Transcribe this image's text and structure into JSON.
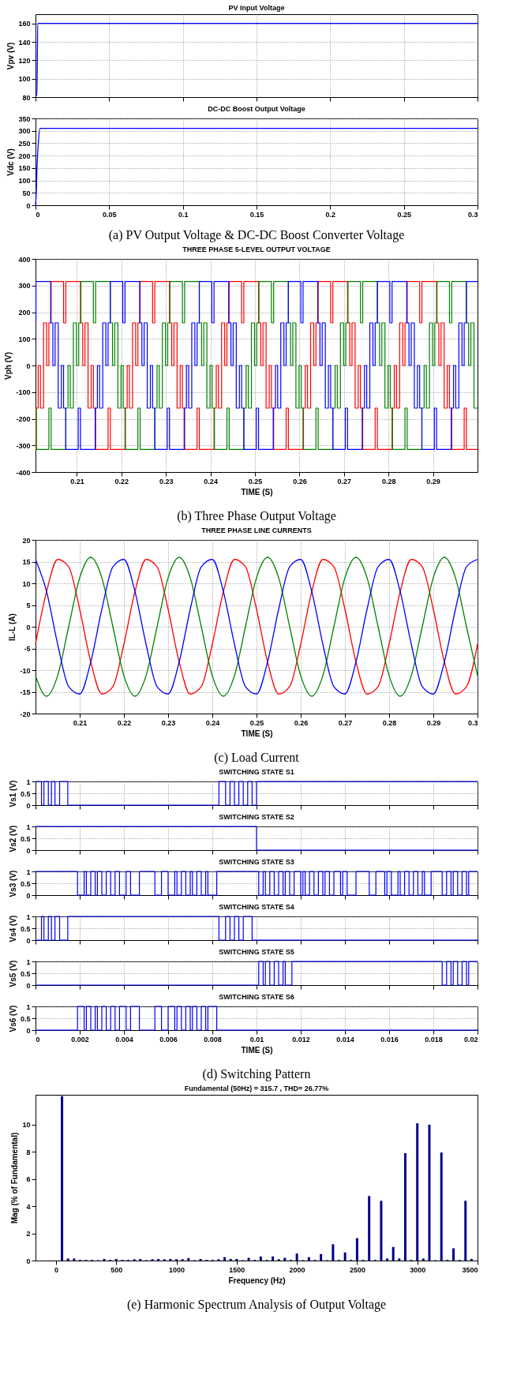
{
  "chart_data": [
    {
      "type": "line",
      "title": "PV Input Voltage",
      "ylabel": "Vpv (V)",
      "xlim": [
        0,
        0.3
      ],
      "xticks": [
        0,
        0.05,
        0.1,
        0.15,
        0.2,
        0.25,
        0.3
      ],
      "ylim": [
        80,
        170
      ],
      "yticks": [
        80,
        100,
        120,
        140,
        160
      ],
      "grid": true,
      "tick_labels": "y",
      "series": [
        {
          "color": "#0000ff",
          "x": [
            0,
            0.001,
            0.0015,
            0.3
          ],
          "values": [
            82,
            82,
            160,
            160
          ]
        }
      ]
    },
    {
      "type": "line",
      "title": "DC-DC Boost Output Voltage",
      "ylabel": "Vdc (V)",
      "xlim": [
        0,
        0.3
      ],
      "xticks": [
        0,
        0.05,
        0.1,
        0.15,
        0.2,
        0.25,
        0.3
      ],
      "ylim": [
        0,
        350
      ],
      "yticks": [
        0,
        50,
        100,
        150,
        200,
        250,
        300,
        350
      ],
      "grid": true,
      "annotations": [
        "(a)    PV Output Voltage & DC-DC Boost Converter Voltage"
      ],
      "series": [
        {
          "color": "#0000ff",
          "x": [
            0,
            0.0005,
            0.001,
            0.002,
            0.003,
            0.3
          ],
          "values": [
            0,
            50,
            150,
            260,
            310,
            310
          ]
        }
      ]
    },
    {
      "type": "step",
      "title": "THREE PHASE 5-LEVEL OUTPUT VOLTAGE",
      "xlabel": "TIME (S)",
      "ylabel": "Vph (V)",
      "xlim": [
        0.2007,
        0.3
      ],
      "xticks": [
        0.21,
        0.22,
        0.23,
        0.24,
        0.25,
        0.26,
        0.27,
        0.28,
        0.29
      ],
      "ylim": [
        -400,
        400
      ],
      "yticks": [
        -400,
        -300,
        -200,
        -100,
        0,
        100,
        200,
        300,
        400
      ],
      "grid": true,
      "annotations": [
        "(b)    Three Phase Output Voltage"
      ],
      "series": [
        {
          "color": "#ff0000",
          "x": [
            0.2007,
            0.2008,
            0.2013,
            0.2018,
            0.2025,
            0.2032,
            0.2037,
            0.2042,
            0.207,
            0.2075,
            0.2108,
            0.2113,
            0.2118,
            0.2125,
            0.2132,
            0.2137,
            0.2142,
            0.217,
            0.2175,
            0.2208,
            0.2213,
            0.2218,
            0.2225,
            0.2232,
            0.2237,
            0.2242,
            0.227,
            0.2275,
            0.2308,
            0.2313,
            0.2318,
            0.2325,
            0.2332,
            0.2337,
            0.2342,
            0.237,
            0.2375,
            0.2408,
            0.2413,
            0.2418,
            0.2425,
            0.2432,
            0.2437,
            0.2442,
            0.247,
            0.2475,
            0.2508,
            0.2513,
            0.2518,
            0.2525,
            0.2532,
            0.2537,
            0.2542,
            0.257,
            0.2575,
            0.2608,
            0.2613,
            0.2618,
            0.2625,
            0.2632,
            0.2637,
            0.2642,
            0.267,
            0.2675,
            0.2708,
            0.2713,
            0.2718,
            0.2725,
            0.2732,
            0.2737,
            0.2742,
            0.277,
            0.2775,
            0.2808,
            0.2813,
            0.2818,
            0.2825,
            0.2832,
            0.2837,
            0.2842,
            0.287,
            0.2875,
            0.2908,
            0.2913,
            0.2918,
            0.2925,
            0.2932,
            0.2937,
            0.2942,
            0.297,
            0.2975,
            0.3
          ],
          "values": [
            -315,
            -160,
            0,
            -160,
            160,
            0,
            160,
            315,
            160,
            315,
            160,
            0,
            160,
            -160,
            0,
            -160,
            -315,
            -160,
            -315,
            -160,
            0,
            -160,
            160,
            0,
            160,
            315,
            160,
            315,
            160,
            0,
            160,
            -160,
            0,
            -160,
            -315,
            -160,
            -315,
            -160,
            0,
            -160,
            160,
            0,
            160,
            315,
            160,
            315,
            160,
            0,
            160,
            -160,
            0,
            -160,
            -315,
            -160,
            -315,
            -160,
            0,
            -160,
            160,
            0,
            160,
            315,
            160,
            315,
            160,
            0,
            160,
            -160,
            0,
            -160,
            -315,
            -160,
            -315,
            -160,
            0,
            -160,
            160,
            0,
            160,
            315,
            160,
            315,
            160,
            0,
            160,
            -160,
            0,
            -160,
            -315,
            -160,
            -315,
            -315
          ]
        },
        {
          "color": "#008000",
          "x": [
            0.2007,
            0.2009,
            0.2037,
            0.2042,
            0.2075,
            0.208,
            0.2085,
            0.2092,
            0.2099,
            0.2104,
            0.2109,
            0.2137,
            0.2142,
            0.2175,
            0.218,
            0.2185,
            0.2192,
            0.2199,
            0.2204,
            0.2209,
            0.2237,
            0.2242,
            0.2275,
            0.228,
            0.2285,
            0.2292,
            0.2299,
            0.2304,
            0.2309,
            0.2337,
            0.2342,
            0.2375,
            0.238,
            0.2385,
            0.2392,
            0.2399,
            0.2404,
            0.2409,
            0.2437,
            0.2442,
            0.2475,
            0.248,
            0.2485,
            0.2492,
            0.2499,
            0.2504,
            0.2509,
            0.2537,
            0.2542,
            0.2575,
            0.258,
            0.2585,
            0.2592,
            0.2599,
            0.2604,
            0.2609,
            0.2637,
            0.2642,
            0.2675,
            0.268,
            0.2685,
            0.2692,
            0.2699,
            0.2704,
            0.2709,
            0.2737,
            0.2742,
            0.2775,
            0.278,
            0.2785,
            0.2792,
            0.2799,
            0.2804,
            0.2809,
            0.2837,
            0.2842,
            0.2875,
            0.288,
            0.2885,
            0.2892,
            0.2899,
            0.2904,
            0.2909,
            0.2937,
            0.2942,
            0.2975,
            0.298,
            0.2985,
            0.2992,
            0.3
          ],
          "values": [
            -160,
            -315,
            -160,
            -315,
            -160,
            0,
            -160,
            160,
            0,
            160,
            315,
            160,
            315,
            160,
            0,
            160,
            -160,
            0,
            -160,
            -315,
            -160,
            -315,
            -160,
            0,
            -160,
            160,
            0,
            160,
            315,
            160,
            315,
            160,
            0,
            160,
            -160,
            0,
            -160,
            -315,
            -160,
            -315,
            -160,
            0,
            -160,
            160,
            0,
            160,
            315,
            160,
            315,
            160,
            0,
            160,
            -160,
            0,
            -160,
            -315,
            -160,
            -315,
            -160,
            0,
            -160,
            160,
            0,
            160,
            315,
            160,
            315,
            160,
            0,
            160,
            -160,
            0,
            -160,
            -315,
            -160,
            -315,
            -160,
            0,
            -160,
            160,
            0,
            160,
            315,
            160,
            315,
            160,
            0,
            160,
            -160,
            -160
          ]
        },
        {
          "color": "#0000ff",
          "x": [
            0.2007,
            0.2008,
            0.2041,
            0.2046,
            0.2051,
            0.2058,
            0.2065,
            0.207,
            0.2075,
            0.2103,
            0.2108,
            0.2141,
            0.2146,
            0.2151,
            0.2158,
            0.2165,
            0.217,
            0.2175,
            0.2203,
            0.2208,
            0.2241,
            0.2246,
            0.2251,
            0.2258,
            0.2265,
            0.227,
            0.2275,
            0.2303,
            0.2308,
            0.2341,
            0.2346,
            0.2351,
            0.2358,
            0.2365,
            0.237,
            0.2375,
            0.2403,
            0.2408,
            0.2441,
            0.2446,
            0.2451,
            0.2458,
            0.2465,
            0.247,
            0.2475,
            0.2503,
            0.2508,
            0.2541,
            0.2546,
            0.2551,
            0.2558,
            0.2565,
            0.257,
            0.2575,
            0.2603,
            0.2608,
            0.2641,
            0.2646,
            0.2651,
            0.2658,
            0.2665,
            0.267,
            0.2675,
            0.2703,
            0.2708,
            0.2741,
            0.2746,
            0.2751,
            0.2758,
            0.2765,
            0.277,
            0.2775,
            0.2803,
            0.2808,
            0.2841,
            0.2846,
            0.2851,
            0.2858,
            0.2865,
            0.287,
            0.2875,
            0.2903,
            0.2908,
            0.2941,
            0.2946,
            0.2951,
            0.2958,
            0.2965,
            0.297,
            0.2975,
            0.3
          ],
          "values": [
            160,
            315,
            160,
            0,
            160,
            -160,
            0,
            -160,
            -315,
            -160,
            -315,
            -160,
            0,
            -160,
            160,
            0,
            160,
            315,
            160,
            315,
            160,
            0,
            160,
            -160,
            0,
            -160,
            -315,
            -160,
            -315,
            -160,
            0,
            -160,
            160,
            0,
            160,
            315,
            160,
            315,
            160,
            0,
            160,
            -160,
            0,
            -160,
            -315,
            -160,
            -315,
            -160,
            0,
            -160,
            160,
            0,
            160,
            315,
            160,
            315,
            160,
            0,
            160,
            -160,
            0,
            -160,
            -315,
            -160,
            -315,
            -160,
            0,
            -160,
            160,
            0,
            160,
            315,
            160,
            315,
            160,
            0,
            160,
            -160,
            0,
            -160,
            -315,
            -160,
            -315,
            -160,
            0,
            -160,
            160,
            0,
            160,
            315,
            315
          ]
        }
      ]
    },
    {
      "type": "line",
      "title": "THREE PHASE LINE CURRENTS",
      "xlabel": "TIME (S)",
      "ylabel": "IL-L (A)",
      "xlim": [
        0.2,
        0.3
      ],
      "xticks": [
        0.21,
        0.22,
        0.23,
        0.24,
        0.25,
        0.26,
        0.27,
        0.28,
        0.29,
        0.3
      ],
      "ylim": [
        -20,
        20
      ],
      "yticks": [
        -20,
        -15,
        -10,
        -5,
        0,
        5,
        10,
        15,
        20
      ],
      "grid": true,
      "annotations": [
        "(c)    Load Current"
      ],
      "x": [
        0.2,
        0.2025,
        0.205,
        0.2075,
        0.21,
        0.2125,
        0.215,
        0.2175,
        0.22,
        0.2225,
        0.225,
        0.2275,
        0.23,
        0.2325,
        0.235,
        0.2375,
        0.24,
        0.2425,
        0.245,
        0.2475,
        0.25,
        0.2525,
        0.255,
        0.2575,
        0.26,
        0.2625,
        0.265,
        0.2675,
        0.27,
        0.2725,
        0.275,
        0.2775,
        0.28,
        0.2825,
        0.285,
        0.2875,
        0.29,
        0.2925,
        0.295,
        0.2975,
        0.3
      ],
      "series": [
        {
          "color": "#ff0000",
          "values": [
            -4.0,
            8.1,
            15.5,
            13.8,
            4.0,
            -8.1,
            -15.5,
            -13.8,
            -4.0,
            8.1,
            15.5,
            13.8,
            4.0,
            -8.1,
            -15.5,
            -13.8,
            -4.0,
            8.1,
            15.5,
            13.8,
            4.0,
            -8.1,
            -15.5,
            -13.8,
            -4.0,
            8.1,
            15.5,
            13.8,
            4.0,
            -8.1,
            -15.5,
            -13.8,
            -4.0,
            8.1,
            15.5,
            13.8,
            4.0,
            -8.1,
            -15.5,
            -13.8,
            -4.0
          ]
        },
        {
          "color": "#008000",
          "values": [
            -11.3,
            -16,
            -11.3,
            0,
            11.3,
            16,
            11.3,
            0,
            -11.3,
            -16,
            -11.3,
            0,
            11.3,
            16,
            11.3,
            0,
            -11.3,
            -16,
            -11.3,
            0,
            11.3,
            16,
            11.3,
            0,
            -11.3,
            -16,
            -11.3,
            0,
            11.3,
            16,
            11.3,
            0,
            -11.3,
            -16,
            -11.3,
            0,
            11.3,
            16,
            11.3,
            0,
            -11.3
          ]
        },
        {
          "color": "#0000ff",
          "values": [
            15.5,
            8.1,
            -4.0,
            -13.8,
            -15.5,
            -8.1,
            4.0,
            13.8,
            15.5,
            8.1,
            -4.0,
            -13.8,
            -15.5,
            -8.1,
            4.0,
            13.8,
            15.5,
            8.1,
            -4.0,
            -13.8,
            -15.5,
            -8.1,
            4.0,
            13.8,
            15.5,
            8.1,
            -4.0,
            -13.8,
            -15.5,
            -8.1,
            4.0,
            13.8,
            15.5,
            8.1,
            -4.0,
            -13.8,
            -15.5,
            -8.1,
            4.0,
            13.8,
            15.5
          ]
        }
      ]
    },
    {
      "type": "step",
      "title": "SWITCHING STATE S1",
      "ylabel": "Vs1 (V)",
      "xlim": [
        0,
        0.02
      ],
      "xticks": [
        0,
        0.002,
        0.004,
        0.006,
        0.008,
        0.01,
        0.012,
        0.014,
        0.016,
        0.018,
        0.02
      ],
      "ylim": [
        0,
        1
      ],
      "yticks": [
        0,
        0.5,
        1
      ],
      "grid": true,
      "tick_labels": "y",
      "series": [
        {
          "color": "#0000ff",
          "x": [
            0,
            0.00027,
            0.00038,
            0.00058,
            0.00072,
            0.00088,
            0.00109,
            0.00146,
            0.0083,
            0.0086,
            0.0088,
            0.009,
            0.0092,
            0.0094,
            0.0096,
            0.0098,
            0.01,
            0.02
          ],
          "values": [
            1,
            0,
            1,
            0,
            1,
            0,
            1,
            0,
            1,
            0,
            1,
            0,
            1,
            0,
            1,
            0,
            1,
            1
          ]
        }
      ]
    },
    {
      "type": "step",
      "title": "SWITCHING STATE S2",
      "ylabel": "Vs2 (V)",
      "xlim": [
        0,
        0.02
      ],
      "xticks": [
        0,
        0.002,
        0.004,
        0.006,
        0.008,
        0.01,
        0.012,
        0.014,
        0.016,
        0.018,
        0.02
      ],
      "ylim": [
        0,
        1
      ],
      "yticks": [
        0,
        0.5,
        1
      ],
      "grid": true,
      "tick_labels": "y",
      "series": [
        {
          "color": "#0000ff",
          "x": [
            0,
            0.01,
            0.02
          ],
          "values": [
            1,
            0,
            0
          ]
        }
      ]
    },
    {
      "type": "step",
      "title": "SWITCHING STATE S3",
      "ylabel": "Vs3 (V)",
      "xlim": [
        0,
        0.02
      ],
      "xticks": [
        0,
        0.002,
        0.004,
        0.006,
        0.008,
        0.01,
        0.012,
        0.014,
        0.016,
        0.018,
        0.02
      ],
      "ylim": [
        0,
        1
      ],
      "yticks": [
        0,
        0.5,
        1
      ],
      "grid": true,
      "tick_labels": "y",
      "series": [
        {
          "color": "#0000ff",
          "x": [
            0,
            0.0019,
            0.0022,
            0.0023,
            0.0025,
            0.0027,
            0.0028,
            0.003,
            0.0032,
            0.0034,
            0.0036,
            0.0038,
            0.0041,
            0.0043,
            0.0047,
            0.0054,
            0.0057,
            0.006,
            0.0063,
            0.0064,
            0.0066,
            0.0068,
            0.007,
            0.0071,
            0.0073,
            0.0075,
            0.0077,
            0.0078,
            0.0082,
            0.0101,
            0.0103,
            0.0104,
            0.0106,
            0.0108,
            0.011,
            0.0112,
            0.0113,
            0.0115,
            0.0117,
            0.012,
            0.0121,
            0.0122,
            0.0124,
            0.0126,
            0.0128,
            0.013,
            0.0131,
            0.0133,
            0.0135,
            0.0138,
            0.0139,
            0.0141,
            0.0145,
            0.0151,
            0.0154,
            0.0158,
            0.0159,
            0.0161,
            0.0164,
            0.0165,
            0.0167,
            0.0169,
            0.0171,
            0.0173,
            0.0175,
            0.0176,
            0.0179,
            0.0184,
            0.0186,
            0.0188,
            0.0189,
            0.0191,
            0.0193,
            0.0195,
            0.0196,
            0.02
          ],
          "values": [
            1,
            0,
            1,
            0,
            1,
            0,
            1,
            0,
            1,
            0,
            1,
            0,
            1,
            0,
            1,
            0,
            1,
            0,
            1,
            0,
            1,
            0,
            1,
            0,
            1,
            0,
            1,
            0,
            1,
            0,
            1,
            0,
            1,
            0,
            1,
            0,
            1,
            0,
            1,
            0,
            1,
            0,
            1,
            0,
            1,
            0,
            1,
            0,
            1,
            0,
            1,
            0,
            1,
            0,
            1,
            0,
            1,
            0,
            1,
            0,
            1,
            0,
            1,
            0,
            1,
            0,
            1,
            0,
            1,
            0,
            1,
            0,
            1,
            0,
            1,
            1
          ]
        }
      ]
    },
    {
      "type": "step",
      "title": "SWITCHING STATE S4",
      "ylabel": "Vs4 (V)",
      "xlim": [
        0,
        0.02
      ],
      "xticks": [
        0,
        0.002,
        0.004,
        0.006,
        0.008,
        0.01,
        0.012,
        0.014,
        0.016,
        0.018,
        0.02
      ],
      "ylim": [
        0,
        1
      ],
      "yticks": [
        0,
        0.5,
        1
      ],
      "grid": true,
      "tick_labels": "y",
      "series": [
        {
          "color": "#0000ff",
          "x": [
            0,
            0.00027,
            0.00038,
            0.00058,
            0.00072,
            0.00088,
            0.00109,
            0.00146,
            0.0083,
            0.0086,
            0.0088,
            0.009,
            0.0092,
            0.0094,
            0.0098,
            0.02
          ],
          "values": [
            0,
            1,
            0,
            1,
            0,
            1,
            0,
            1,
            0,
            1,
            0,
            1,
            0,
            1,
            0,
            0
          ]
        }
      ]
    },
    {
      "type": "step",
      "title": "SWITCHING STATE S5",
      "ylabel": "Vs5 (V)",
      "xlim": [
        0,
        0.02
      ],
      "xticks": [
        0,
        0.002,
        0.004,
        0.006,
        0.008,
        0.01,
        0.012,
        0.014,
        0.016,
        0.018,
        0.02
      ],
      "ylim": [
        0,
        1
      ],
      "yticks": [
        0,
        0.5,
        1
      ],
      "grid": true,
      "tick_labels": "y",
      "series": [
        {
          "color": "#0000ff",
          "x": [
            0,
            0.0101,
            0.0103,
            0.0104,
            0.0106,
            0.0108,
            0.011,
            0.0112,
            0.0113,
            0.0116,
            0.0184,
            0.0186,
            0.0188,
            0.0189,
            0.0191,
            0.0193,
            0.0195,
            0.0196,
            0.02
          ],
          "values": [
            0,
            1,
            0,
            1,
            0,
            1,
            0,
            1,
            0,
            1,
            0,
            1,
            0,
            1,
            0,
            1,
            0,
            1,
            1
          ]
        }
      ]
    },
    {
      "type": "step",
      "title": "SWITCHING STATE S6",
      "xlabel": "TIME (S)",
      "ylabel": "Vs6 (V)",
      "xlim": [
        0,
        0.02
      ],
      "xticks": [
        0,
        0.002,
        0.004,
        0.006,
        0.008,
        0.01,
        0.012,
        0.014,
        0.016,
        0.018,
        0.02
      ],
      "ylim": [
        0,
        1
      ],
      "yticks": [
        0,
        0.5,
        1
      ],
      "grid": true,
      "annotations": [
        "(d) Switching Pattern"
      ],
      "series": [
        {
          "color": "#0000ff",
          "x": [
            0,
            0.0019,
            0.0022,
            0.0023,
            0.0025,
            0.0027,
            0.0028,
            0.003,
            0.0032,
            0.0034,
            0.0036,
            0.0038,
            0.0041,
            0.0043,
            0.0047,
            0.0054,
            0.0057,
            0.006,
            0.0063,
            0.0064,
            0.0066,
            0.0068,
            0.007,
            0.0071,
            0.0073,
            0.0075,
            0.0077,
            0.0078,
            0.0082,
            0.02
          ],
          "values": [
            0,
            1,
            0,
            1,
            0,
            1,
            0,
            1,
            0,
            1,
            0,
            1,
            0,
            1,
            0,
            1,
            0,
            1,
            0,
            1,
            0,
            1,
            0,
            1,
            0,
            1,
            0,
            1,
            0,
            0
          ]
        }
      ]
    },
    {
      "type": "bar",
      "title": "Fundamental (50Hz) = 315.7 , THD= 26.77%",
      "xlabel": "Frequency (Hz)",
      "ylabel": "Mag (% of Fundamental)",
      "xlim": [
        -170,
        3500
      ],
      "xticks": [
        0,
        500,
        1000,
        1500,
        2000,
        2500,
        3000,
        3500
      ],
      "ylim": [
        0,
        12.2
      ],
      "yticks": [
        0,
        2,
        4,
        6,
        8,
        10
      ],
      "grid": false,
      "color": "#00008b",
      "annotations": [
        "(e)    Harmonic Spectrum Analysis of Output Voltage"
      ],
      "x": [
        50,
        100,
        150,
        200,
        250,
        300,
        350,
        400,
        450,
        500,
        550,
        600,
        650,
        700,
        750,
        800,
        850,
        900,
        950,
        1000,
        1050,
        1100,
        1150,
        1200,
        1250,
        1300,
        1350,
        1400,
        1450,
        1500,
        1550,
        1600,
        1650,
        1700,
        1750,
        1800,
        1850,
        1900,
        1950,
        2000,
        2050,
        2100,
        2150,
        2200,
        2250,
        2300,
        2350,
        2400,
        2450,
        2500,
        2550,
        2600,
        2650,
        2700,
        2750,
        2800,
        2850,
        2900,
        2950,
        3000,
        3050,
        3100,
        3150,
        3200,
        3250,
        3300,
        3350,
        3400,
        3450
      ],
      "values": [
        12.1,
        0.15,
        0.15,
        0.05,
        0.05,
        0.05,
        0.03,
        0.12,
        0.05,
        0.12,
        0.05,
        0.05,
        0.1,
        0.12,
        0.03,
        0.1,
        0.12,
        0.1,
        0.12,
        0.1,
        0.1,
        0.18,
        0.03,
        0.12,
        0.05,
        0.05,
        0.1,
        0.25,
        0.12,
        0.12,
        0.03,
        0.2,
        0.05,
        0.3,
        0.05,
        0.3,
        0.1,
        0.2,
        0.05,
        0.52,
        0.03,
        0.25,
        0.05,
        0.48,
        0.03,
        1.2,
        0.05,
        0.6,
        0.05,
        1.65,
        0.05,
        4.75,
        0.05,
        4.4,
        0.15,
        1.0,
        0.15,
        7.9,
        0.05,
        10.1,
        0.15,
        10.0,
        0.03,
        7.95,
        0.05,
        0.9,
        0.05,
        4.4,
        0.12
      ]
    }
  ]
}
